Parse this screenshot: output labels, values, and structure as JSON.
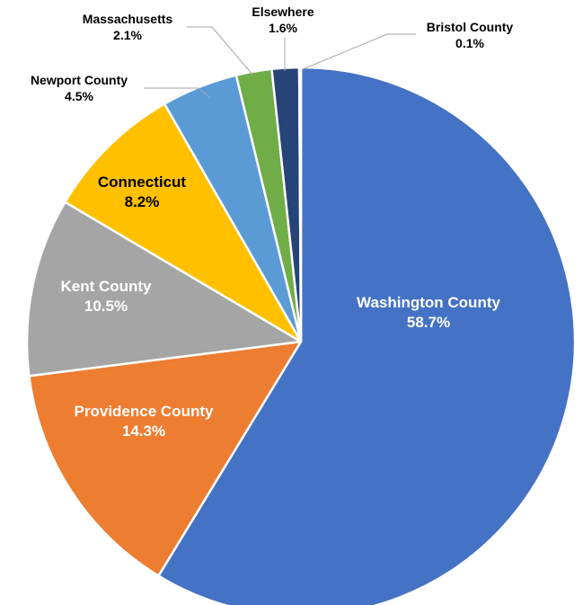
{
  "chart_data": {
    "type": "pie",
    "title": "",
    "start_angle_deg": 0,
    "direction": "clockwise",
    "colors_note": "slice colors in order",
    "slices": [
      {
        "label": "Washington County",
        "value": 58.7,
        "display": "58.7%",
        "color": "#4472C4",
        "label_color": "#FFFFFF"
      },
      {
        "label": "Providence County",
        "value": 14.3,
        "display": "14.3%",
        "color": "#ED7D31",
        "label_color": "#FFFFFF"
      },
      {
        "label": "Kent County",
        "value": 10.5,
        "display": "10.5%",
        "color": "#A5A5A5",
        "label_color": "#FFFFFF"
      },
      {
        "label": "Connecticut",
        "value": 8.2,
        "display": "8.2%",
        "color": "#FFC000",
        "label_color": "#000000"
      },
      {
        "label": "Newport County",
        "value": 4.5,
        "display": "4.5%",
        "color": "#5B9BD5",
        "label_color": "#000000"
      },
      {
        "label": "Massachusetts",
        "value": 2.1,
        "display": "2.1%",
        "color": "#70AD47",
        "label_color": "#000000"
      },
      {
        "label": "Elsewhere",
        "value": 1.6,
        "display": "1.6%",
        "color": "#264478",
        "label_color": "#000000"
      },
      {
        "label": "Bristol County",
        "value": 0.1,
        "display": "0.1%",
        "color": "#9E480E",
        "label_color": "#000000"
      }
    ]
  }
}
